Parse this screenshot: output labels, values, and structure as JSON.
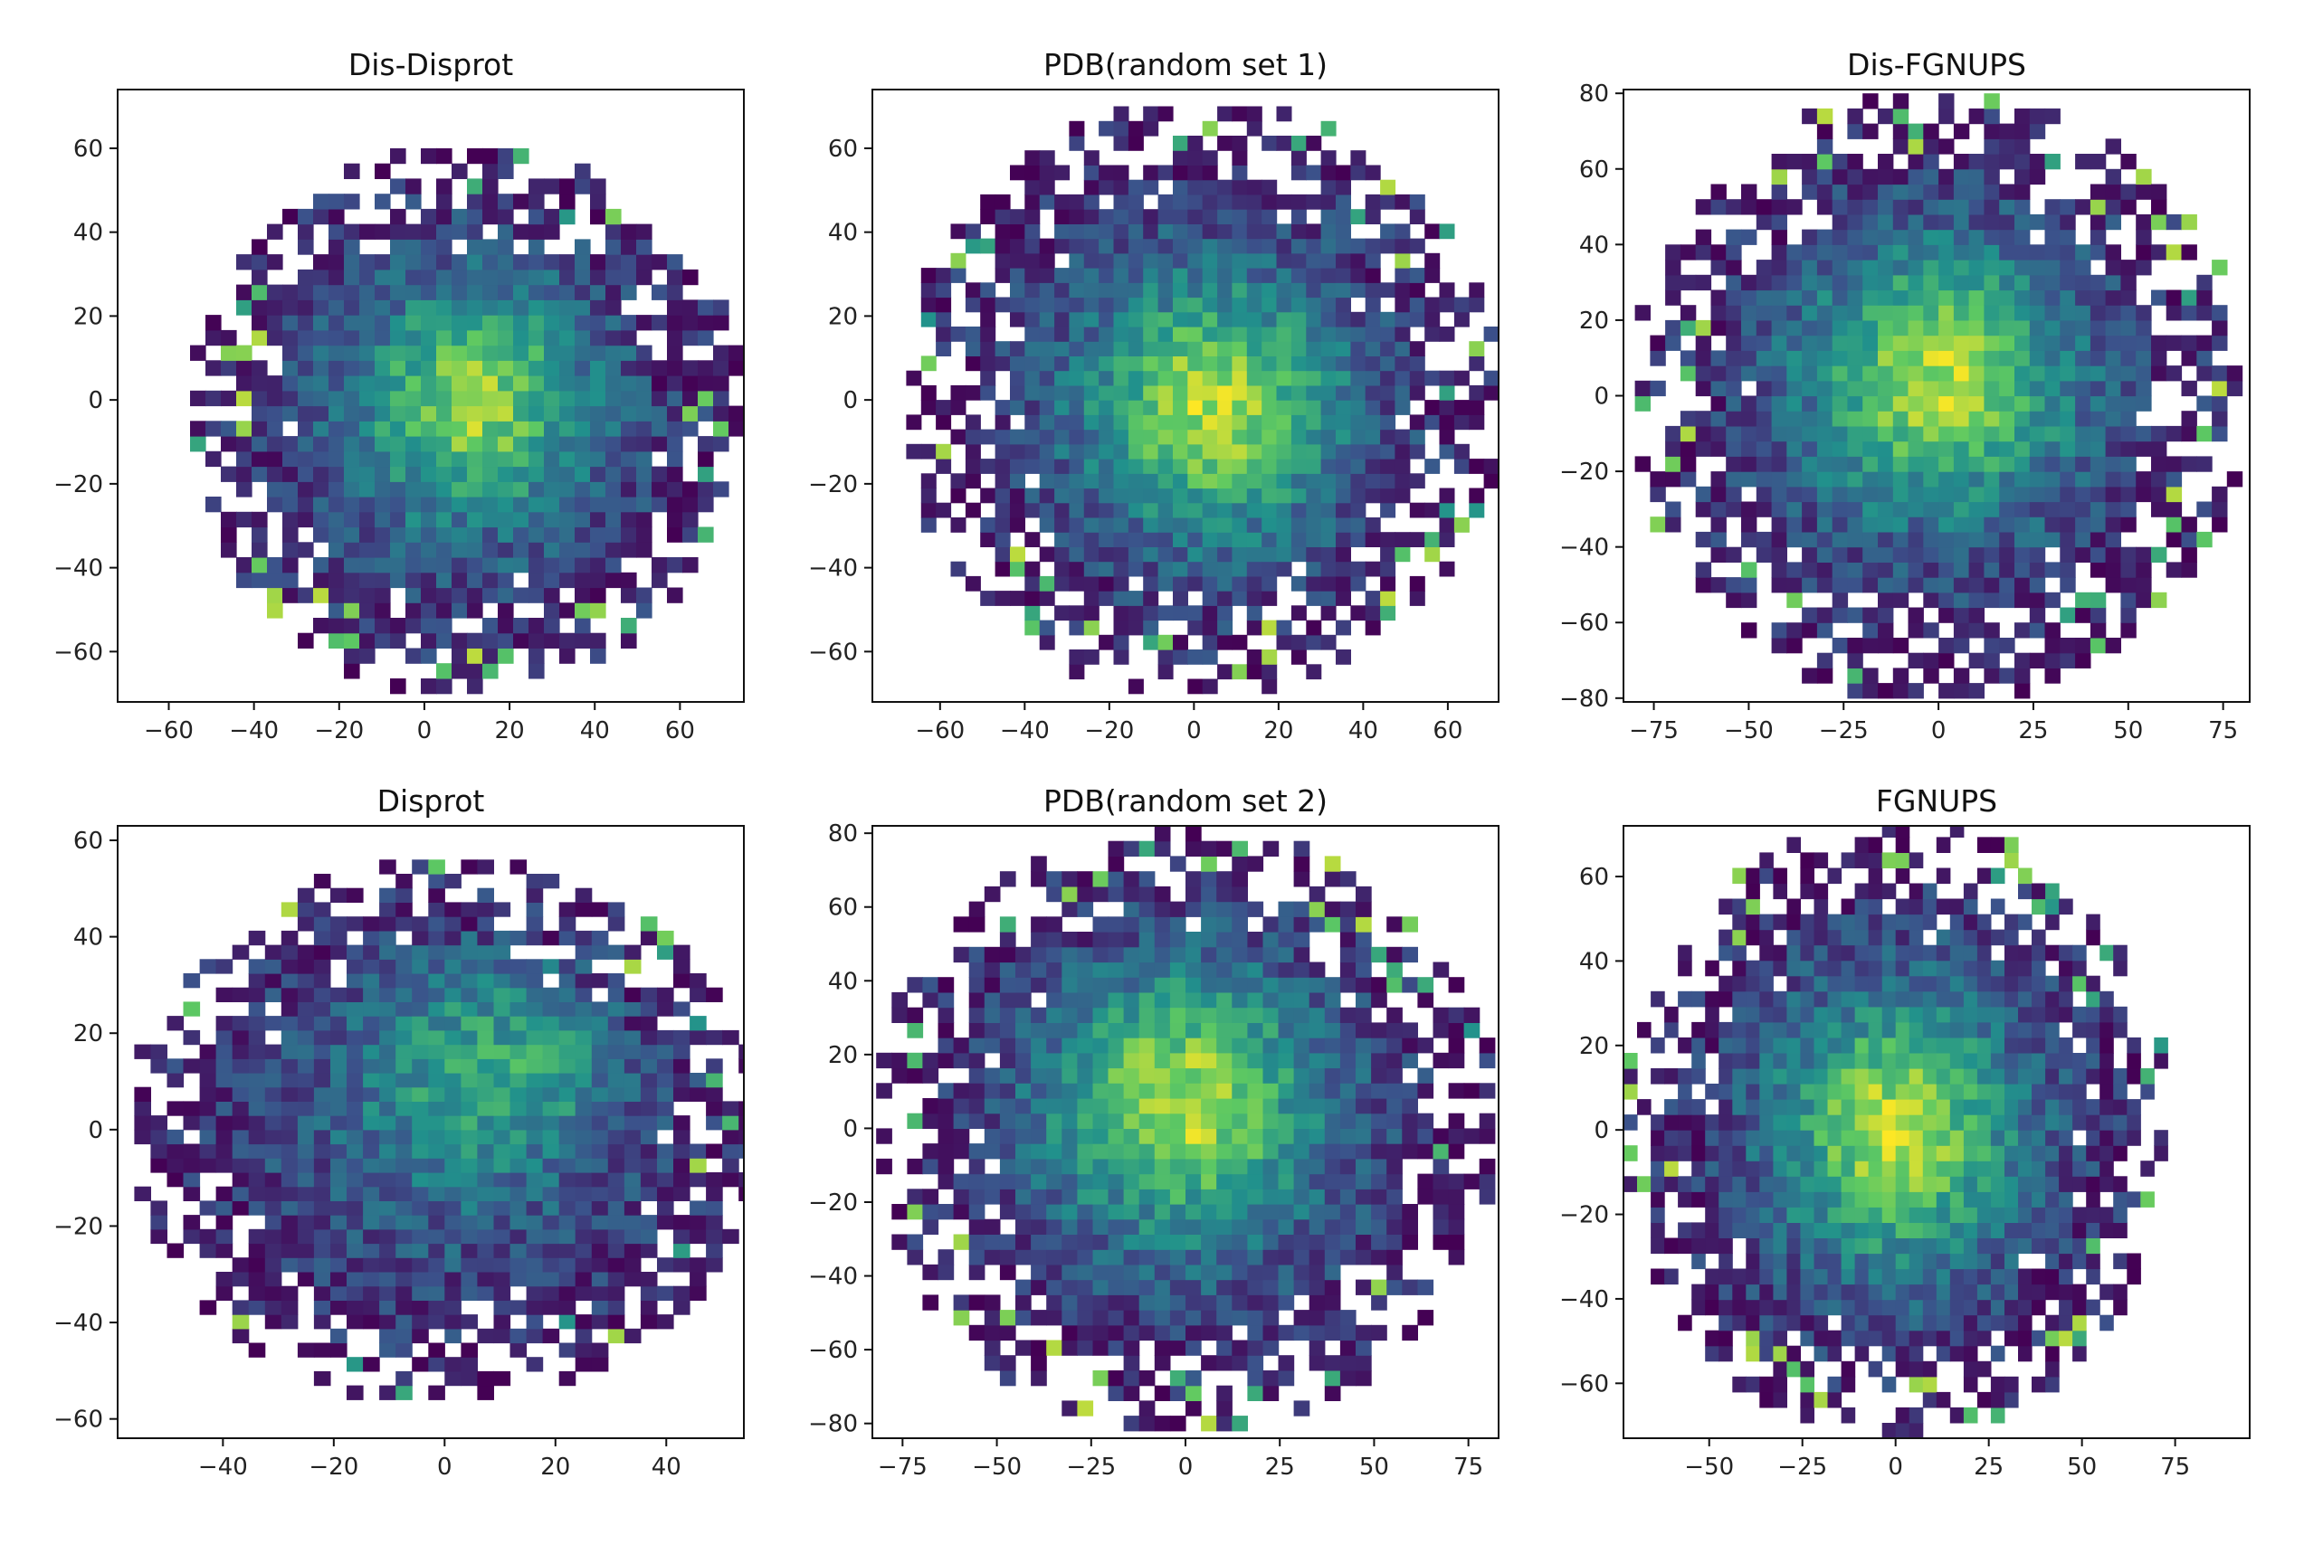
{
  "colormap": [
    "#440154",
    "#3b528b",
    "#21918c",
    "#5ec962",
    "#fde725"
  ],
  "background": "#ffffff",
  "chart_data": [
    {
      "type": "heatmap",
      "title": "Dis-Disprot",
      "xlim": [
        -72,
        75
      ],
      "ylim": [
        -72,
        74
      ],
      "xticks": [
        -60,
        -40,
        -20,
        0,
        20,
        40,
        60
      ],
      "yticks": [
        -60,
        -40,
        -20,
        0,
        20,
        40,
        60
      ],
      "center": [
        10,
        -5
      ],
      "radius": 65,
      "bins": 36,
      "peak": [
        12,
        0
      ],
      "peak_intensity": 0.82,
      "seed": 11,
      "grid": false
    },
    {
      "type": "heatmap",
      "title": "PDB(random set 1)",
      "xlim": [
        -76,
        72
      ],
      "ylim": [
        -72,
        74
      ],
      "xticks": [
        -60,
        -40,
        -20,
        0,
        20,
        40,
        60
      ],
      "yticks": [
        -60,
        -40,
        -20,
        0,
        20,
        40,
        60
      ],
      "center": [
        2,
        0
      ],
      "radius": 70,
      "bins": 40,
      "peak": [
        5,
        -2
      ],
      "peak_intensity": 0.9,
      "seed": 23,
      "grid": false
    },
    {
      "type": "heatmap",
      "title": "Dis-FGNUPS",
      "xlim": [
        -83,
        82
      ],
      "ylim": [
        -81,
        81
      ],
      "xticks": [
        -75,
        -50,
        -25,
        0,
        25,
        50,
        75
      ],
      "yticks": [
        -80,
        -60,
        -40,
        -20,
        0,
        20,
        40,
        60,
        80
      ],
      "center": [
        0,
        0
      ],
      "radius": 80,
      "bins": 40,
      "peak": [
        0,
        5
      ],
      "peak_intensity": 0.9,
      "seed": 37,
      "grid": false
    },
    {
      "type": "heatmap",
      "title": "Disprot",
      "xlim": [
        -59,
        54
      ],
      "ylim": [
        -64,
        63
      ],
      "xticks": [
        -40,
        -20,
        0,
        20,
        40
      ],
      "yticks": [
        -60,
        -40,
        -20,
        0,
        20,
        40,
        60
      ],
      "center": [
        0,
        0
      ],
      "radius": 56,
      "bins": 38,
      "peak": [
        10,
        15
      ],
      "peak_intensity": 0.55,
      "seed": 41,
      "grid": false
    },
    {
      "type": "heatmap",
      "title": "PDB(random set 2)",
      "xlim": [
        -83,
        83
      ],
      "ylim": [
        -84,
        82
      ],
      "xticks": [
        -75,
        -50,
        -25,
        0,
        25,
        50,
        75
      ],
      "yticks": [
        -80,
        -60,
        -40,
        -20,
        0,
        20,
        40,
        60,
        80
      ],
      "center": [
        0,
        0
      ],
      "radius": 82,
      "bins": 40,
      "peak": [
        0,
        8
      ],
      "peak_intensity": 0.92,
      "seed": 53,
      "grid": false
    },
    {
      "type": "heatmap",
      "title": "FGNUPS",
      "xlim": [
        -73,
        95
      ],
      "ylim": [
        -73,
        72
      ],
      "xticks": [
        -50,
        -25,
        0,
        25,
        50,
        75
      ],
      "yticks": [
        -60,
        -40,
        -20,
        0,
        20,
        40,
        60
      ],
      "center": [
        0,
        0
      ],
      "radius": 73,
      "bins": 40,
      "peak": [
        0,
        0
      ],
      "peak_intensity": 0.92,
      "seed": 67,
      "grid": false
    }
  ]
}
